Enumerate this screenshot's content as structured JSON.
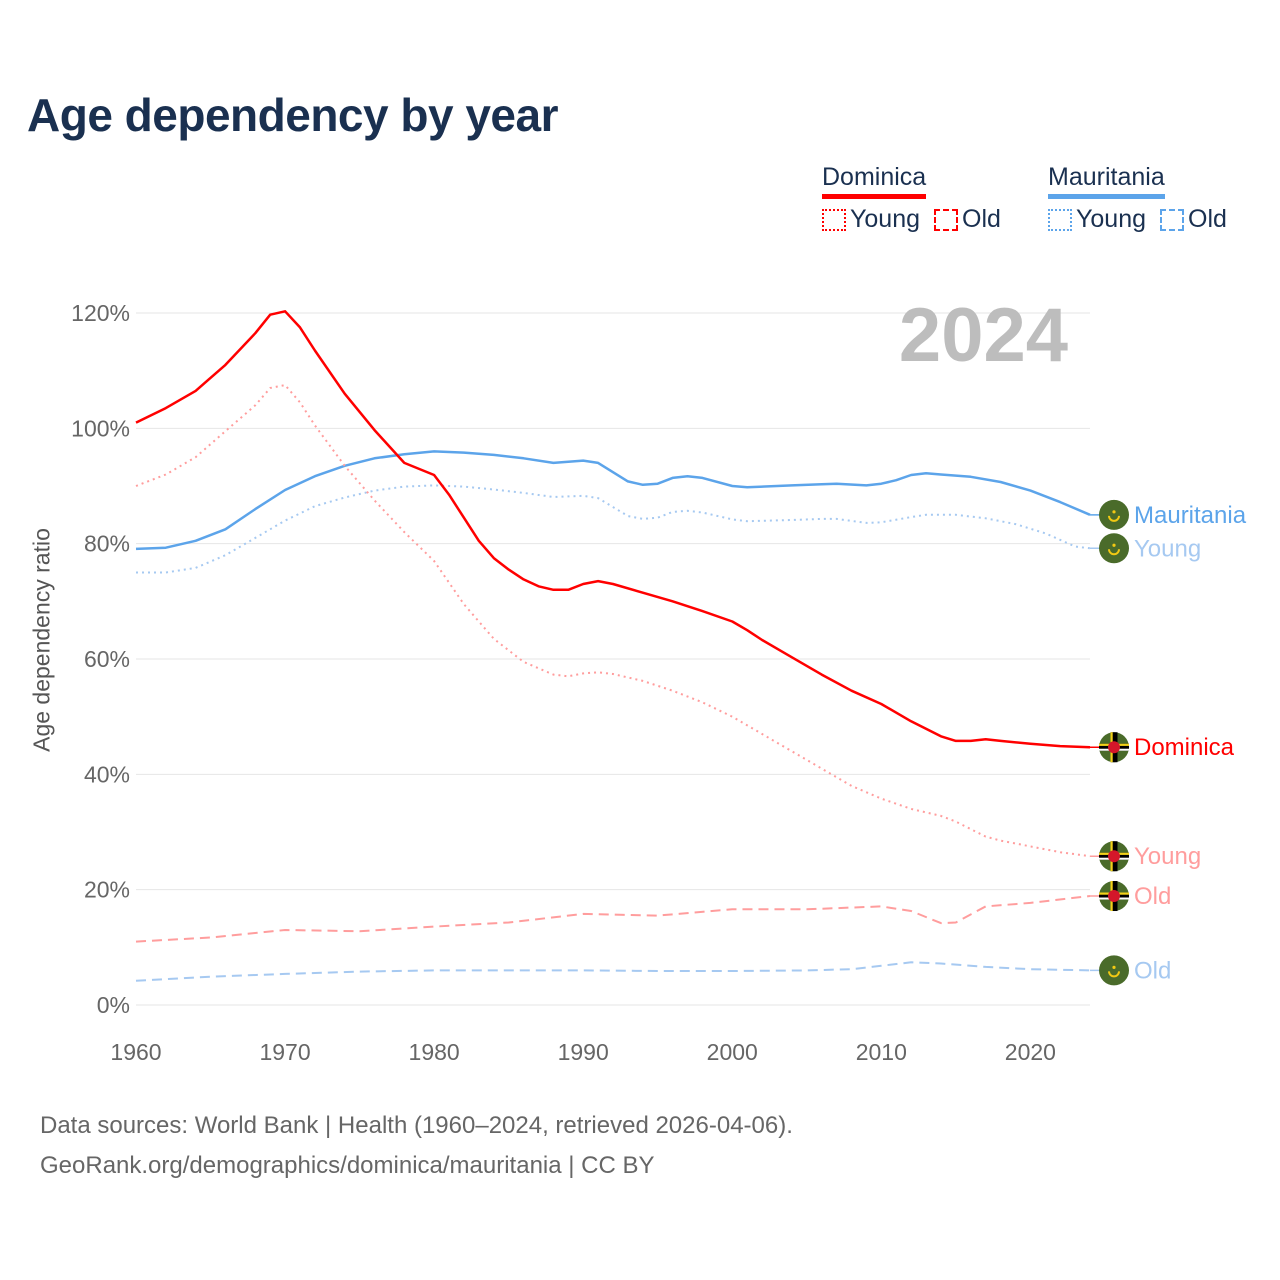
{
  "title": "Age dependency by year",
  "year_label": "2024",
  "legend": {
    "countries": [
      {
        "name": "Dominica",
        "color": "#ff0000",
        "light": "#ff9d9d",
        "young": "Young",
        "old": "Old"
      },
      {
        "name": "Mauritania",
        "color": "#5ca4ea",
        "light": "#a6c9f1",
        "young": "Young",
        "old": "Old"
      }
    ]
  },
  "source": {
    "line1": "Data sources: World Bank | Health (1960–2024, retrieved 2026-04-06).",
    "line2": "GeoRank.org/demographics/dominica/mauritania | CC BY"
  },
  "chart_data": {
    "type": "line",
    "title": "Age dependency by year",
    "xlabel": "",
    "ylabel": "Age dependency ratio",
    "xlim": [
      1960,
      2024
    ],
    "ylim": [
      0,
      120
    ],
    "x_ticks": [
      "1960",
      "1970",
      "1980",
      "1990",
      "2000",
      "2010",
      "2020"
    ],
    "y_ticks": [
      "0%",
      "20%",
      "40%",
      "60%",
      "80%",
      "100%",
      "120%"
    ],
    "grid": true,
    "series": [
      {
        "name": "Mauritania",
        "end_label": "Mauritania",
        "country": "Mauritania",
        "kind": "total",
        "flag": "mauritania",
        "color": "#5ca4ea",
        "dash": "solid",
        "x": [
          1960,
          1962,
          1964,
          1966,
          1968,
          1970,
          1972,
          1974,
          1976,
          1978,
          1980,
          1982,
          1984,
          1986,
          1988,
          1990,
          1991,
          1993,
          1994,
          1995,
          1996,
          1997,
          1998,
          2000,
          2001,
          2004,
          2006,
          2007,
          2009,
          2010,
          2011,
          2012,
          2013,
          2014,
          2016,
          2018,
          2020,
          2022,
          2024
        ],
        "y": [
          79.1,
          79.3,
          80.5,
          82.5,
          86,
          89.3,
          91.7,
          93.5,
          94.8,
          95.5,
          96,
          95.8,
          95.4,
          94.8,
          94,
          94.4,
          94,
          90.8,
          90.2,
          90.4,
          91.4,
          91.7,
          91.4,
          90,
          89.8,
          90.1,
          90.3,
          90.4,
          90.1,
          90.4,
          91,
          91.9,
          92.2,
          92,
          91.6,
          90.7,
          89.2,
          87.2,
          85
        ]
      },
      {
        "name": "Mauritania Young",
        "end_label": "Young",
        "country": "Mauritania",
        "kind": "young",
        "flag": "mauritania",
        "color": "#a6c9f1",
        "dash": "dotted",
        "x": [
          1960,
          1962,
          1964,
          1966,
          1968,
          1970,
          1972,
          1974,
          1976,
          1978,
          1980,
          1982,
          1984,
          1986,
          1988,
          1990,
          1991,
          1993,
          1994,
          1995,
          1996,
          1997,
          1998,
          2000,
          2001,
          2004,
          2006,
          2007,
          2009,
          2010,
          2012,
          2013,
          2015,
          2017,
          2019,
          2021,
          2023,
          2024
        ],
        "y": [
          75,
          75,
          75.8,
          78,
          81,
          84,
          86.5,
          88,
          89.2,
          89.9,
          90.1,
          89.9,
          89.4,
          88.8,
          88.1,
          88.3,
          87.9,
          84.8,
          84.3,
          84.5,
          85.5,
          85.7,
          85.4,
          84.2,
          83.9,
          84.1,
          84.3,
          84.3,
          83.6,
          83.7,
          84.6,
          85,
          85,
          84.4,
          83.4,
          81.8,
          79.5,
          79.2
        ]
      },
      {
        "name": "Dominica",
        "end_label": "Dominica",
        "country": "Dominica",
        "kind": "total",
        "flag": "dominica",
        "color": "#ff0000",
        "dash": "solid",
        "x": [
          1960,
          1962,
          1964,
          1966,
          1968,
          1969,
          1970,
          1971,
          1972,
          1974,
          1976,
          1978,
          1980,
          1981,
          1982,
          1983,
          1984,
          1985,
          1986,
          1987,
          1988,
          1989,
          1990,
          1991,
          1992,
          1994,
          1996,
          1998,
          2000,
          2001,
          2002,
          2004,
          2006,
          2008,
          2010,
          2012,
          2014,
          2015,
          2016,
          2017,
          2018,
          2020,
          2022,
          2024
        ],
        "y": [
          101,
          103.5,
          106.5,
          111,
          116.5,
          119.7,
          120.3,
          117.5,
          113.5,
          106,
          99.7,
          94,
          91.9,
          88.5,
          84.5,
          80.5,
          77.5,
          75.5,
          73.8,
          72.6,
          72,
          72,
          73,
          73.5,
          73,
          71.5,
          70,
          68.3,
          66.5,
          65,
          63.3,
          60.3,
          57.3,
          54.5,
          52.2,
          49.2,
          46.6,
          45.8,
          45.8,
          46.1,
          45.8,
          45.3,
          44.9,
          44.7
        ]
      },
      {
        "name": "Dominica Young",
        "end_label": "Young",
        "country": "Dominica",
        "kind": "young",
        "flag": "dominica",
        "color": "#ff9d9d",
        "dash": "dotted",
        "x": [
          1960,
          1962,
          1964,
          1966,
          1968,
          1969,
          1970,
          1971,
          1972,
          1974,
          1976,
          1978,
          1980,
          1982,
          1984,
          1986,
          1988,
          1989,
          1990,
          1991,
          1992,
          1994,
          1996,
          1998,
          2000,
          2002,
          2004,
          2006,
          2008,
          2010,
          2012,
          2014,
          2015,
          2017,
          2018,
          2020,
          2022,
          2024
        ],
        "y": [
          90,
          92,
          95,
          99.5,
          104,
          107,
          107.5,
          104.5,
          100.5,
          93.5,
          87.5,
          82,
          77,
          69.5,
          63.5,
          59.5,
          57.3,
          57,
          57.5,
          57.7,
          57.4,
          56.2,
          54.5,
          52.5,
          50,
          47,
          44,
          41,
          38,
          35.8,
          34,
          32.8,
          31.8,
          29.2,
          28.5,
          27.5,
          26.5,
          25.8
        ]
      },
      {
        "name": "Dominica Old",
        "end_label": "Old",
        "country": "Dominica",
        "kind": "old",
        "flag": "dominica",
        "color": "#ff9d9d",
        "dash": "dashed",
        "x": [
          1960,
          1965,
          1970,
          1975,
          1980,
          1985,
          1990,
          1995,
          2000,
          2005,
          2010,
          2012,
          2014,
          2015,
          2017,
          2020,
          2024
        ],
        "y": [
          11,
          11.7,
          13,
          12.8,
          13.6,
          14.3,
          15.8,
          15.5,
          16.6,
          16.6,
          17.1,
          16.3,
          14.2,
          14.3,
          17.1,
          17.7,
          18.9
        ]
      },
      {
        "name": "Mauritania Old",
        "end_label": "Old",
        "country": "Mauritania",
        "kind": "old",
        "flag": "mauritania",
        "color": "#a6c9f1",
        "dash": "dashed",
        "x": [
          1960,
          1965,
          1970,
          1975,
          1980,
          1985,
          1990,
          1995,
          2000,
          2005,
          2008,
          2010,
          2012,
          2014,
          2017,
          2020,
          2024
        ],
        "y": [
          4.2,
          4.9,
          5.4,
          5.8,
          6,
          6,
          6,
          5.9,
          5.9,
          6,
          6.2,
          6.8,
          7.4,
          7.2,
          6.6,
          6.2,
          6
        ]
      }
    ]
  }
}
